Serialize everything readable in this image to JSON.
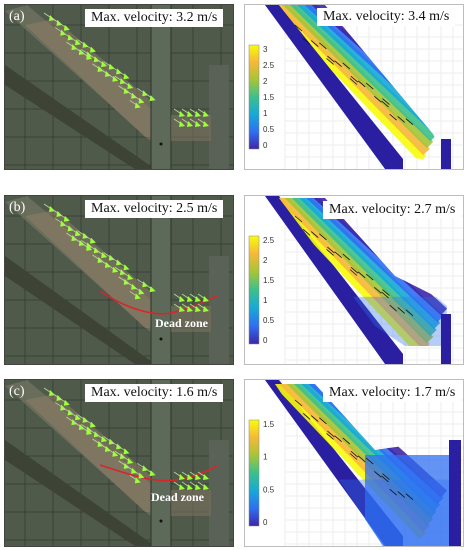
{
  "rows": [
    {
      "label": "(a)",
      "photo_caption": "Max. velocity: 3.2 m/s",
      "sim_caption": "Max. velocity: 3.4 m/s",
      "colorbar_ticks": [
        "3",
        "2.5",
        "2",
        "1.5",
        "1",
        "0.5",
        "0"
      ],
      "dead_zone": ""
    },
    {
      "label": "(b)",
      "photo_caption": "Max. velocity: 2.5 m/s",
      "sim_caption": "Max. velocity: 2.7 m/s",
      "colorbar_ticks": [
        "2.5",
        "2",
        "1.5",
        "1",
        "0.5",
        "0"
      ],
      "dead_zone": "Dead zone"
    },
    {
      "label": "(c)",
      "photo_caption": "Max. velocity: 1.6 m/s",
      "sim_caption": "Max. velocity: 1.7 m/s",
      "colorbar_ticks": [
        "1.5",
        "1",
        "0.5",
        "0"
      ],
      "dead_zone": "Dead zone"
    }
  ],
  "colors": {
    "arrow": "#9cff3a",
    "dead_zone_line": "#d7262b",
    "colorbar": [
      "#3e26a8",
      "#2f6ff2",
      "#17a9d6",
      "#3cc08c",
      "#a6c537",
      "#f5b83a",
      "#f9fb0e"
    ]
  }
}
